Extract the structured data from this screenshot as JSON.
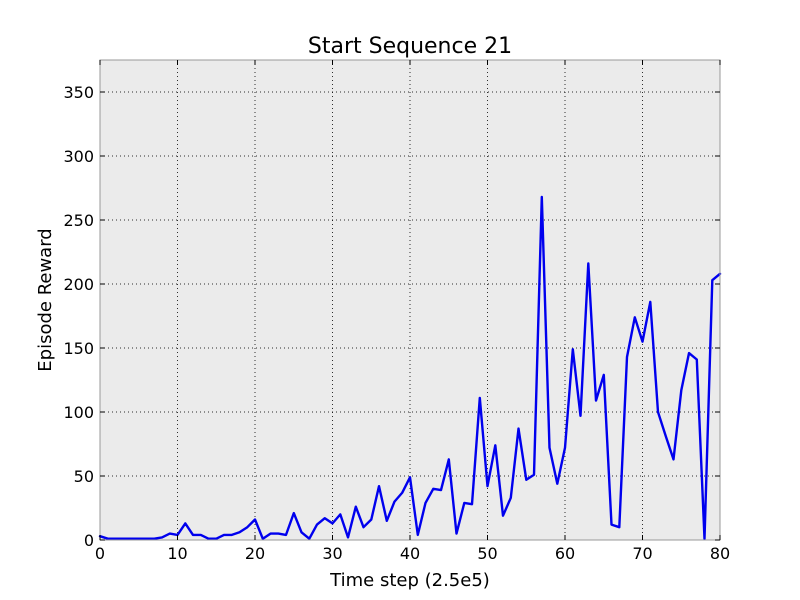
{
  "chart_data": {
    "type": "line",
    "title": "Start Sequence 21",
    "xlabel": "Time step (2.5e5)",
    "ylabel": "Episode Reward",
    "xlim": [
      0,
      80
    ],
    "ylim": [
      0,
      375
    ],
    "xticks": [
      0,
      10,
      20,
      30,
      40,
      50,
      60,
      70,
      80
    ],
    "yticks": [
      0,
      50,
      100,
      150,
      200,
      250,
      300,
      350
    ],
    "grid": true,
    "colors": {
      "line": "#0000ee",
      "plot_bg": "#ebebeb",
      "frame": "#999999"
    },
    "series": [
      {
        "x": [
          0,
          1,
          2,
          3,
          4,
          5,
          6,
          7,
          8,
          9,
          10,
          11,
          12,
          13,
          14,
          15,
          16,
          17,
          18,
          19,
          20,
          21,
          22,
          23,
          24,
          25,
          26,
          27,
          28,
          29,
          30,
          31,
          32,
          33,
          34,
          35,
          36,
          37,
          38,
          39,
          40,
          41,
          42,
          43,
          44,
          45,
          46,
          47,
          48,
          49,
          50,
          51,
          52,
          53,
          54,
          55,
          56,
          57,
          58,
          59,
          60,
          61,
          62,
          63,
          64,
          65,
          66,
          67,
          68,
          69,
          70,
          71,
          72,
          73,
          74,
          75,
          76,
          77,
          78,
          79,
          80
        ],
        "values": [
          3,
          1,
          1,
          1,
          1,
          1,
          1,
          1,
          2,
          5,
          4,
          13,
          4,
          4,
          1,
          1,
          4,
          4,
          6,
          10,
          16,
          1,
          5,
          5,
          4,
          21,
          6,
          1,
          12,
          17,
          13,
          20,
          2,
          26,
          10,
          16,
          42,
          15,
          30,
          37,
          49,
          4,
          29,
          40,
          39,
          63,
          5,
          29,
          28,
          111,
          42,
          74,
          19,
          33,
          87,
          47,
          51,
          268,
          72,
          44,
          72,
          149,
          97,
          216,
          109,
          129,
          12,
          10,
          143,
          174,
          155,
          186,
          100,
          81,
          63,
          117,
          146,
          141,
          1,
          203,
          208
        ]
      }
    ]
  }
}
